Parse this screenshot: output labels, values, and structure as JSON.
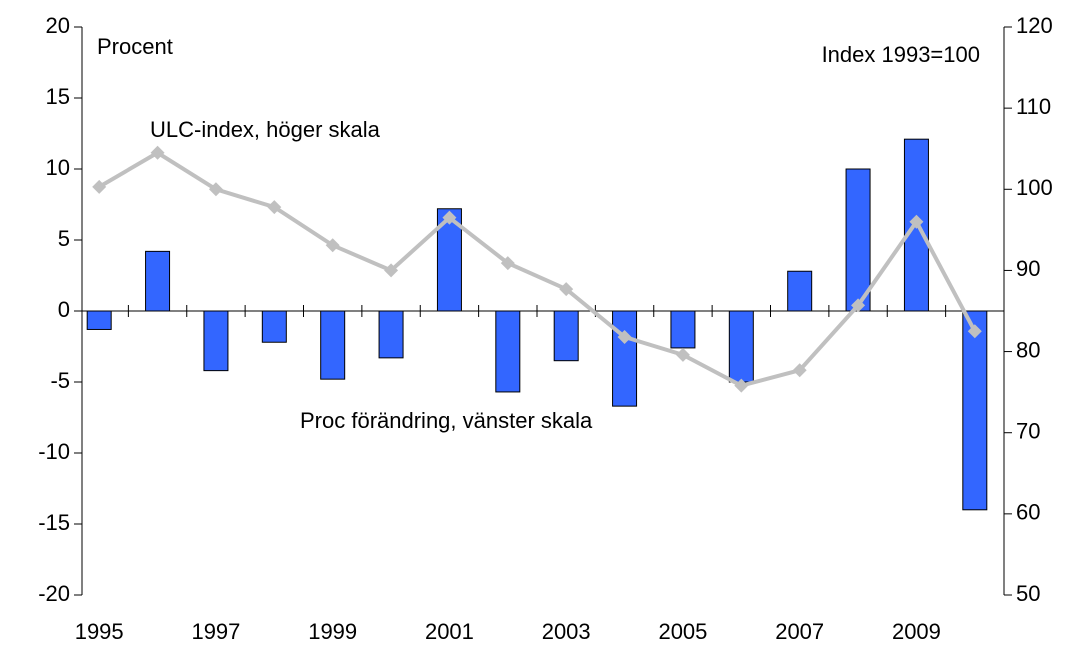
{
  "chart_data": {
    "type": "bar_line",
    "annotations": [
      "Procent",
      "Index 1993=100",
      "ULC-index, höger skala",
      "Proc förändring, vänster skala"
    ],
    "categories": [
      "1995",
      null,
      "1997",
      null,
      "1999",
      null,
      "2001",
      null,
      "2003",
      null,
      "2005",
      null,
      "2007",
      null,
      "2009",
      null
    ],
    "series": [
      {
        "name": "Proc förändring, vänster skala",
        "color": "#3366ff",
        "axis": "y",
        "values": [
          -1.3,
          4.2,
          -4.2,
          -2.2,
          -4.8,
          -3.3,
          7.2,
          -5.7,
          -3.5,
          -6.7,
          -2.6,
          -5.0,
          2.8,
          10.0,
          12.1,
          -14.0
        ]
      },
      {
        "name": "ULC-index, höger skala",
        "color": "#c0c0c0",
        "axis": "y2",
        "values": [
          100.3,
          104.5,
          100.0,
          97.8,
          93.1,
          90.0,
          96.5,
          90.9,
          87.7,
          81.8,
          79.6,
          75.8,
          77.7,
          85.7,
          96.0,
          82.5
        ]
      }
    ],
    "ylim": [
      -20,
      20
    ],
    "yticks": [
      -20,
      -15,
      -10,
      -5,
      0,
      5,
      10,
      15,
      20
    ],
    "y2lim": [
      50,
      120
    ],
    "y2ticks": [
      50,
      60,
      70,
      80,
      90,
      100,
      110,
      120
    ]
  }
}
